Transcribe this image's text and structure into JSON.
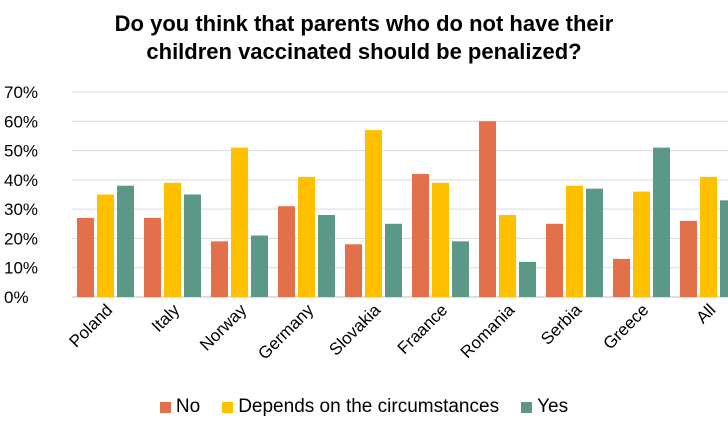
{
  "chart_data": {
    "type": "bar",
    "title_lines": [
      "Do you think that parents who do not have their",
      "children vaccinated should be penalized?"
    ],
    "categories": [
      "Poland",
      "Italy",
      "Norway",
      "Germany",
      "Slovakia",
      "Fraance",
      "Romania",
      "Serbia",
      "Greece",
      "All"
    ],
    "series": [
      {
        "name": "No",
        "color": "#E2704B",
        "values": [
          27,
          27,
          19,
          31,
          18,
          42,
          60,
          25,
          13,
          26
        ]
      },
      {
        "name": "Depends on the circumstances",
        "color": "#FFC000",
        "values": [
          35,
          39,
          51,
          41,
          57,
          39,
          28,
          38,
          36,
          41
        ]
      },
      {
        "name": "Yes",
        "color": "#5B9887",
        "values": [
          38,
          35,
          21,
          28,
          25,
          19,
          12,
          37,
          51,
          33
        ]
      }
    ],
    "ylim": [
      0,
      70
    ],
    "yticks": [
      "0%",
      "10%",
      "20%",
      "30%",
      "40%",
      "50%",
      "60%",
      "70%"
    ],
    "xlabel": "",
    "ylabel": "",
    "grid": true,
    "legend_position": "bottom"
  }
}
